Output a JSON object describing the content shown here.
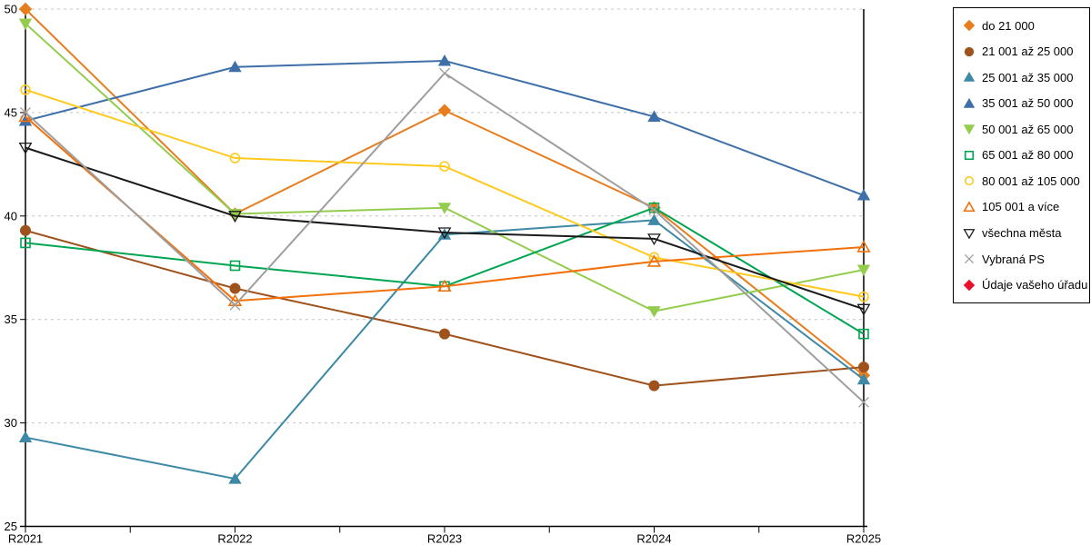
{
  "chart_data": {
    "type": "line",
    "title": "",
    "xlabel": "",
    "ylabel": "",
    "categories": [
      "R2021",
      "R2022",
      "R2023",
      "R2024",
      "R2025"
    ],
    "y_ticks": [
      25,
      30,
      35,
      40,
      45,
      50
    ],
    "ylim": [
      25,
      50
    ],
    "grid": "horizontal-dashed",
    "legend_position": "right-outside",
    "axis_color": "#000000",
    "gridline_color": "#c4c4c4",
    "series": [
      {
        "name": "do 21 000",
        "color": "#E87D1E",
        "marker": "diamond",
        "filled": true,
        "values": [
          50.0,
          40.1,
          45.1,
          40.4,
          32.3
        ]
      },
      {
        "name": "21 001 až 25 000",
        "color": "#A0521D",
        "marker": "circle",
        "filled": true,
        "values": [
          39.3,
          36.5,
          34.3,
          31.8,
          32.7
        ]
      },
      {
        "name": "25 001 až 35 000",
        "color": "#3D89A6",
        "marker": "triangle-up",
        "filled": true,
        "values": [
          29.3,
          27.3,
          39.1,
          39.8,
          32.1
        ]
      },
      {
        "name": "35 001 až 50 000",
        "color": "#3F6FA8",
        "marker": "triangle-up",
        "filled": true,
        "values": [
          44.6,
          47.2,
          47.5,
          44.8,
          41.0
        ]
      },
      {
        "name": "50 001 až 65 000",
        "color": "#94CC4E",
        "marker": "triangle-down",
        "filled": true,
        "values": [
          49.3,
          40.1,
          40.4,
          35.4,
          37.4
        ]
      },
      {
        "name": "65 001 až 80 000",
        "color": "#00A551",
        "marker": "square",
        "filled": false,
        "values": [
          38.7,
          37.6,
          36.6,
          40.4,
          34.3
        ]
      },
      {
        "name": "80 001 až 105 000",
        "color": "#FFC91E",
        "marker": "circle",
        "filled": false,
        "values": [
          46.1,
          42.8,
          42.4,
          38.0,
          36.1
        ]
      },
      {
        "name": "105 001 a více",
        "color": "#F2700A",
        "marker": "triangle-up",
        "filled": false,
        "values": [
          44.8,
          35.9,
          36.6,
          37.8,
          38.5
        ]
      },
      {
        "name": "všechna města",
        "color": "#1A1A1A",
        "marker": "triangle-down",
        "filled": false,
        "values": [
          43.3,
          40.0,
          39.2,
          38.9,
          35.5
        ]
      },
      {
        "name": "Vybraná PS",
        "color": "#9E9E9E",
        "marker": "x",
        "filled": false,
        "values": [
          45.0,
          35.7,
          46.9,
          40.3,
          31.0
        ]
      },
      {
        "name": "Údaje vašeho úřadu",
        "color": "#E8112D",
        "marker": "diamond",
        "filled": true,
        "values": []
      }
    ]
  }
}
